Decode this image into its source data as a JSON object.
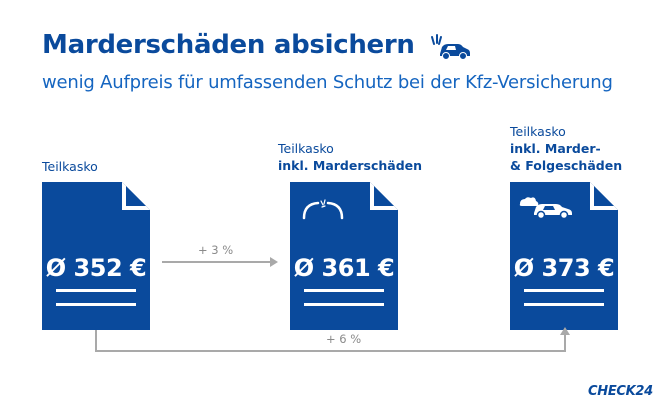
{
  "header": {
    "title": "Marderschäden absichern",
    "subtitle": "wenig Aufpreis für umfassenden Schutz bei der Kfz-Versicherung",
    "title_icon": "car-damage-icon"
  },
  "columns": [
    {
      "label_line1": "Teilkasko",
      "label_bold1": "",
      "label_bold2": "",
      "price": "Ø 352 €",
      "icon": ""
    },
    {
      "label_line1": "Teilkasko",
      "label_bold1": "inkl. Marderschäden",
      "label_bold2": "",
      "price": "Ø 361 €",
      "icon": "chewed-cable-icon"
    },
    {
      "label_line1": "Teilkasko",
      "label_bold1": "inkl. Marder-",
      "label_bold2": "& Folgeschäden",
      "price": "Ø 373 €",
      "icon": "broken-car-icon"
    }
  ],
  "changes": {
    "step": "+ 3 %",
    "total": "+ 6 %"
  },
  "footer": {
    "logo": "CHECK24"
  },
  "colors": {
    "primary": "#0a4a9c",
    "accent": "#1565c0",
    "arrow": "#a9a9a9"
  }
}
